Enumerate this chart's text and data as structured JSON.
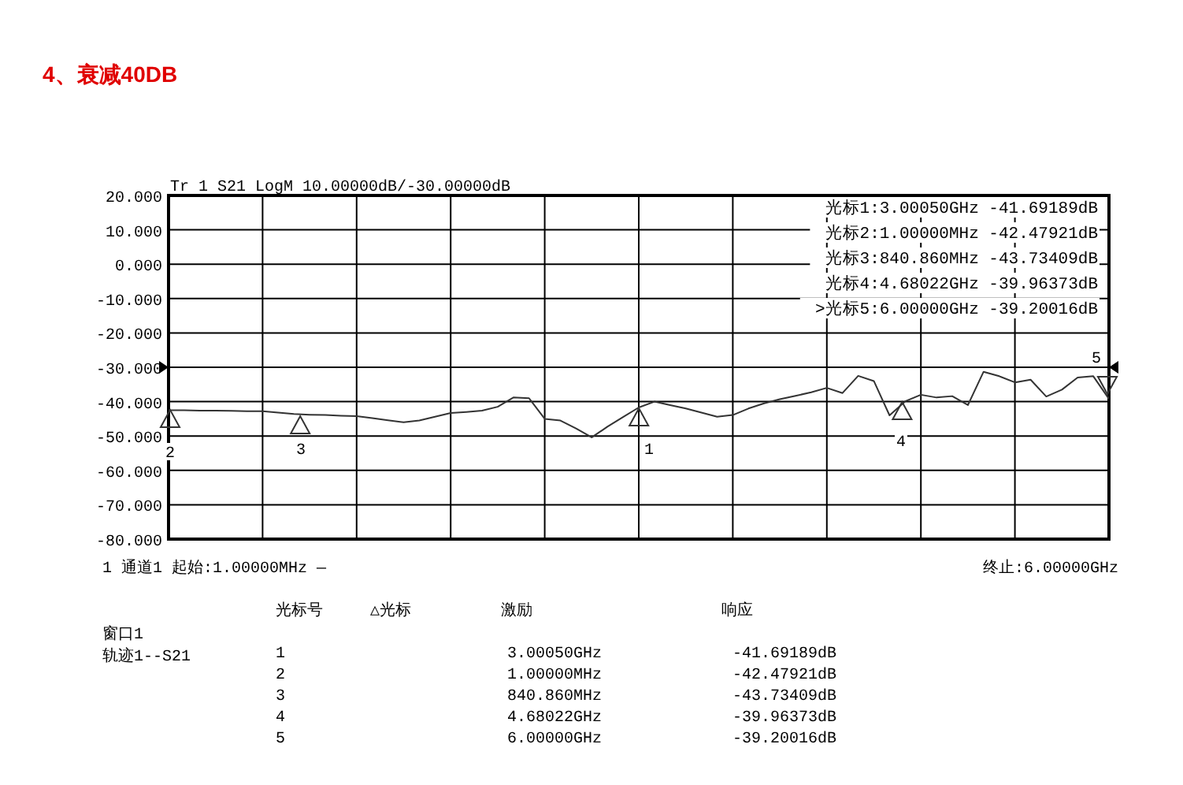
{
  "chart_data": {
    "type": "line",
    "title": "4、衰减40DB",
    "annotations": [
      "Tr 1  S21 LogM 10.00000dB/-30.00000dB",
      "光标1:3.00050GHz -41.69189dB",
      "光标2:1.00000MHz -42.47921dB",
      "光标3:840.860MHz -43.73409dB",
      "光标4:4.68022GHz -39.96373dB",
      ">光标5:6.00000GHz -39.20016dB",
      "1  通道1  起始:1.00000MHz —",
      "终止:6.00000GHz",
      "窗口1",
      "轨迹1--S21",
      "光标号",
      "△光标",
      "激励",
      "响应",
      "1",
      "3.00050GHz",
      "-41.69189dB",
      "2",
      "1.00000MHz",
      "-42.47921dB",
      "3",
      "840.860MHz",
      "-43.73409dB",
      "4",
      "4.68022GHz",
      "-39.96373dB",
      "5",
      "6.00000GHz",
      "-39.20016dB",
      "1",
      "2",
      "3",
      "4",
      "5"
    ],
    "categories": [
      null,
      null,
      null,
      null,
      null,
      null,
      null,
      null,
      null,
      null,
      null,
      null,
      null,
      null,
      null,
      null,
      null,
      null,
      null,
      null,
      null,
      null,
      null,
      null,
      null,
      null,
      null,
      null,
      null,
      null,
      null,
      null,
      null,
      null,
      null,
      null,
      null,
      null,
      null,
      null,
      null,
      null,
      null,
      null,
      null,
      null,
      null,
      null,
      null,
      null,
      null,
      null,
      null,
      null,
      null,
      null,
      null,
      null,
      null,
      null,
      null
    ],
    "series": [
      {
        "color": "#333333",
        "values": [
          -42.5,
          -42.5,
          -42.6,
          -42.6,
          -42.7,
          -42.8,
          -42.8,
          -43.2,
          -43.6,
          -43.8,
          -43.9,
          -44.1,
          -44.2,
          -44.8,
          -45.4,
          -46.0,
          -45.5,
          -44.4,
          -43.3,
          -43.0,
          -42.6,
          -41.5,
          -38.8,
          -39.0,
          -45.0,
          -45.5,
          -47.8,
          -50.4,
          -47.3,
          -44.5,
          -41.7,
          -40.0,
          -41.0,
          -42.0,
          -43.2,
          -44.4,
          -43.9,
          -42.0,
          -40.5,
          -39.3,
          -38.3,
          -37.3,
          -36.0,
          -37.5,
          -32.5,
          -34.0,
          -44.0,
          -39.9,
          -38.0,
          -38.8,
          -38.4,
          -41.0,
          -31.3,
          -32.6,
          -34.4,
          -33.6,
          -38.5,
          -36.5,
          -33.0,
          -32.6,
          -39.2
        ]
      }
    ],
    "ylim": [
      -80,
      20
    ],
    "yticks": [
      {
        "value": 20,
        "label": "20.000"
      },
      {
        "value": 10,
        "label": "10.000"
      },
      {
        "value": 0,
        "label": "0.000"
      },
      {
        "value": -10,
        "label": "-10.000"
      },
      {
        "value": -20,
        "label": "-20.000"
      },
      {
        "value": -30,
        "label": "-30.000"
      },
      {
        "value": -40,
        "label": "-40.000"
      },
      {
        "value": -50,
        "label": "-50.000"
      },
      {
        "value": -60,
        "label": "-60.000"
      },
      {
        "value": -70,
        "label": "-70.000"
      },
      {
        "value": -80,
        "label": "-80.000"
      }
    ],
    "grid": true,
    "tick_labels": "y",
    "line_style": "solid"
  }
}
